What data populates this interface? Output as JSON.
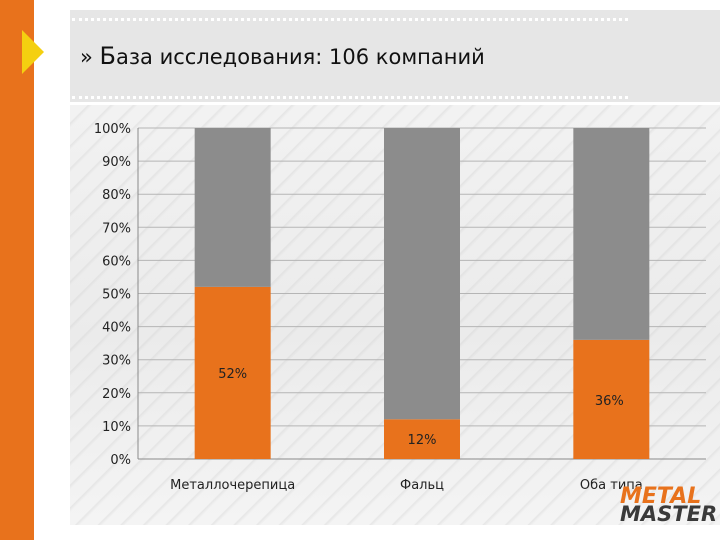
{
  "title": {
    "first_letter": "Б",
    "rest": "аза исследования: 106 компаний",
    "prefix": "»"
  },
  "logo": {
    "line1": "METAL",
    "line2": "MASTER"
  },
  "colors": {
    "accent": "#e8721c",
    "arrow": "#f4d010",
    "bar_gray": "#8c8c8c",
    "bar_orange": "#e8721c"
  },
  "chart_data": {
    "type": "bar",
    "stacked": true,
    "categories": [
      "Металлочерепица",
      "Фальц",
      "Оба типа"
    ],
    "series": [
      {
        "values": [
          52,
          12,
          36
        ],
        "labels": [
          "52%",
          "12%",
          "36%"
        ],
        "color": "#e8721c"
      },
      {
        "values": [
          48,
          88,
          64
        ],
        "color": "#8c8c8c"
      }
    ],
    "ylim": [
      0,
      100
    ],
    "yticks": [
      "0%",
      "10%",
      "20%",
      "30%",
      "40%",
      "50%",
      "60%",
      "70%",
      "80%",
      "90%",
      "100%"
    ],
    "grid": true,
    "legend": "none"
  }
}
